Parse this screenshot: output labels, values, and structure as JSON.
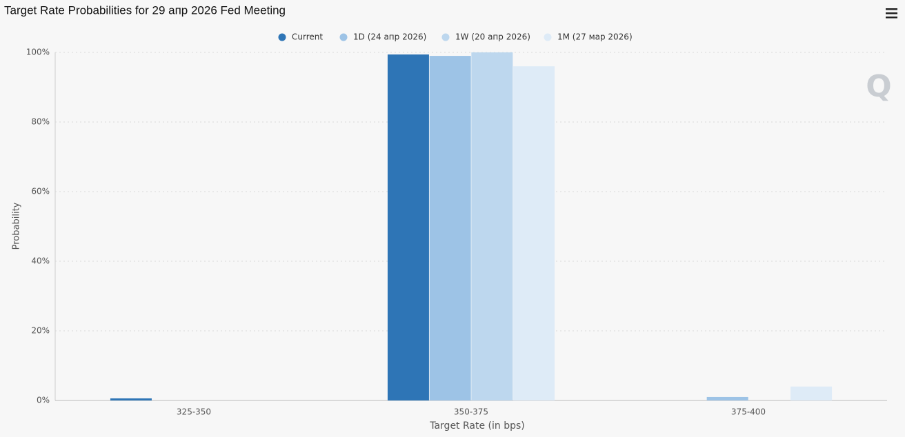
{
  "chart_data": {
    "type": "bar",
    "title": "Target Rate Probabilities for 29 апр 2026 Fed Meeting",
    "x_label": "Target Rate (in bps)",
    "y_label": "Probability",
    "categories": [
      "325-350",
      "350-375",
      "375-400"
    ],
    "series": [
      {
        "name": "Current",
        "color": "#2e75b6",
        "values": [
          0.6,
          99.4,
          0
        ]
      },
      {
        "name": "1D (24 апр 2026)",
        "color": "#9dc3e6",
        "values": [
          0,
          99.0,
          1.0
        ]
      },
      {
        "name": "1W (20 апр 2026)",
        "color": "#bdd7ee",
        "values": [
          0,
          100,
          0
        ]
      },
      {
        "name": "1M (27 мар 2026)",
        "color": "#deebf7",
        "values": [
          0,
          96.0,
          4.0
        ]
      }
    ],
    "ylim": [
      0,
      100
    ],
    "yticks": [
      {
        "value": 0,
        "label": "0%"
      },
      {
        "value": 20,
        "label": "20%"
      },
      {
        "value": 40,
        "label": "40%"
      },
      {
        "value": 60,
        "label": "60%"
      },
      {
        "value": 80,
        "label": "80%"
      },
      {
        "value": 100,
        "label": "100%"
      }
    ],
    "grid": true
  }
}
